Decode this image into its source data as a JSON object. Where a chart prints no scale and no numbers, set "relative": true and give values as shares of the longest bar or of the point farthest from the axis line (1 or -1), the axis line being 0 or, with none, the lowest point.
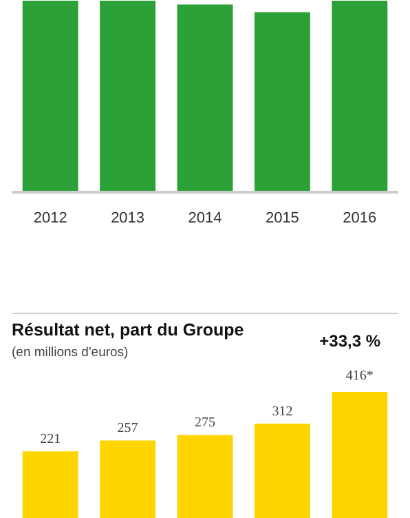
{
  "chart_data": [
    {
      "type": "bar",
      "categories": [
        "2012",
        "2013",
        "2014",
        "2015",
        "2016"
      ],
      "values": [
        1,
        1,
        0.98,
        0.94,
        1
      ],
      "color": "#2ca137",
      "relative": true
    },
    {
      "type": "bar",
      "title": "Résultat net, part du Groupe",
      "subtitle": "(en millions d'euros)",
      "annotations": [
        "+33,3 %"
      ],
      "categories": [
        null,
        null,
        null,
        null,
        null
      ],
      "values": [
        221,
        257,
        275,
        312,
        416
      ],
      "value_labels": [
        "221",
        "257",
        "275",
        "312",
        "416*"
      ],
      "color": "#ffd500"
    }
  ]
}
